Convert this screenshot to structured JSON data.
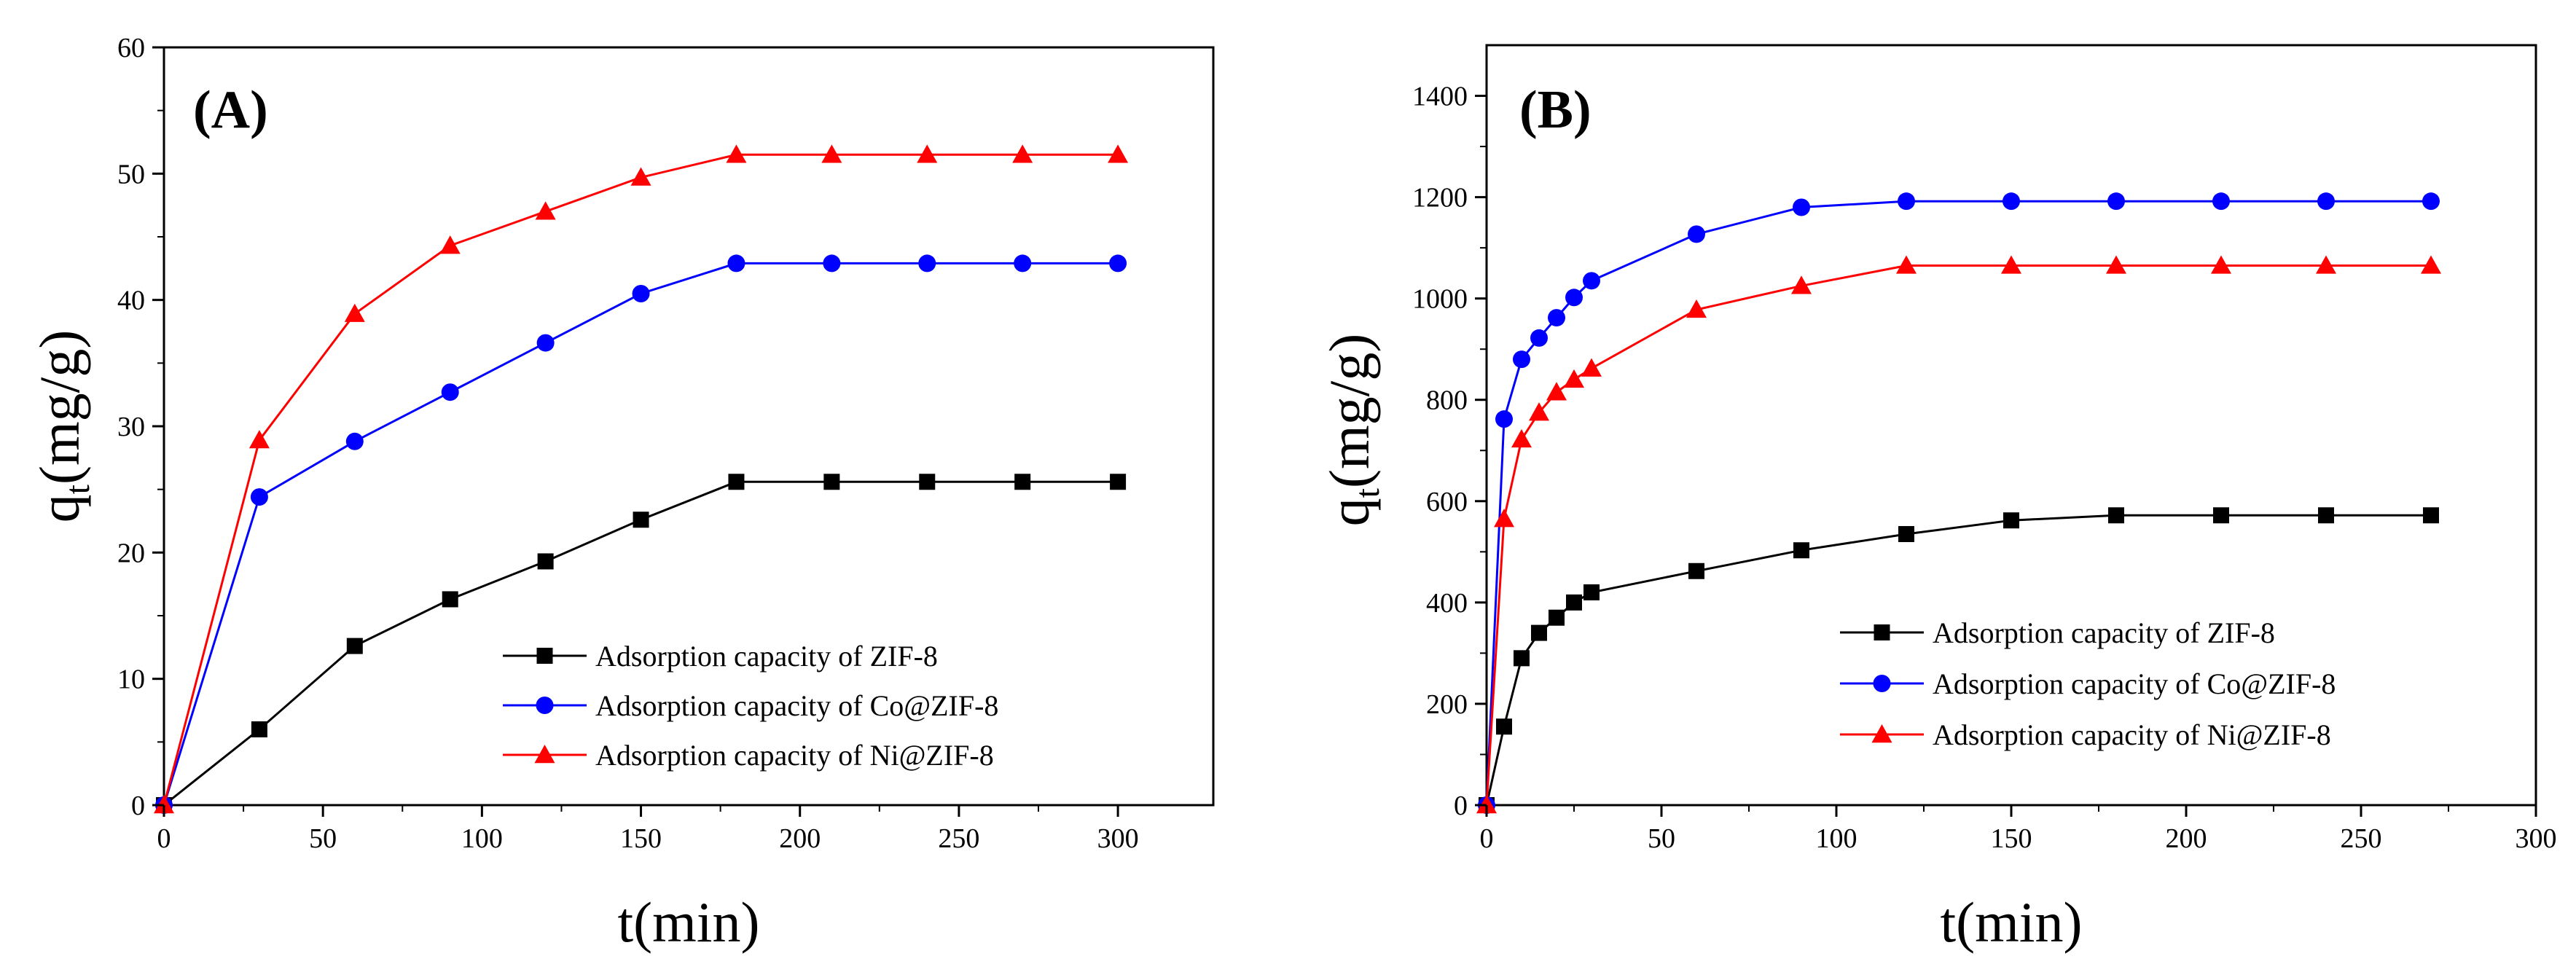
{
  "chart_data": [
    {
      "type": "line",
      "panel_label": "(A)",
      "xlabel": "t(min)",
      "ylabel_main": "q",
      "ylabel_sub": "t",
      "ylabel_tail": "(mg/g)",
      "xlim": [
        0,
        330
      ],
      "ylim": [
        0,
        60
      ],
      "xticks": [
        0,
        50,
        100,
        150,
        200,
        250,
        300
      ],
      "yticks": [
        0,
        10,
        20,
        30,
        40,
        50,
        60
      ],
      "legend_position": "lower-right",
      "grid": false,
      "series": [
        {
          "name": "Adsorption capacity of  ZIF-8",
          "color": "#000000",
          "marker": "square",
          "x": [
            0,
            30,
            60,
            90,
            120,
            150,
            180,
            210,
            240,
            270,
            300
          ],
          "y": [
            0,
            6,
            12.6,
            16.3,
            19.3,
            22.6,
            25.6,
            25.6,
            25.6,
            25.6,
            25.6
          ]
        },
        {
          "name": "Adsorption capacity of  Co@ZIF-8",
          "color": "#0000ff",
          "marker": "circle",
          "x": [
            0,
            30,
            60,
            90,
            120,
            150,
            180,
            210,
            240,
            270,
            300
          ],
          "y": [
            0,
            24.4,
            28.8,
            32.7,
            36.6,
            40.5,
            42.9,
            42.9,
            42.9,
            42.9,
            42.9
          ]
        },
        {
          "name": "Adsorption capacity of  Ni@ZIF-8",
          "color": "#ff0000",
          "marker": "triangle",
          "x": [
            0,
            30,
            60,
            90,
            120,
            150,
            180,
            210,
            240,
            270,
            300
          ],
          "y": [
            0,
            28.9,
            38.9,
            44.3,
            47,
            49.7,
            51.5,
            51.5,
            51.5,
            51.5,
            51.5
          ]
        }
      ]
    },
    {
      "type": "line",
      "panel_label": "(B)",
      "xlabel": "t(min)",
      "ylabel_main": "q",
      "ylabel_sub": "t",
      "ylabel_tail": "(mg/g)",
      "xlim": [
        0,
        300
      ],
      "ylim": [
        0,
        1500
      ],
      "xticks": [
        0,
        50,
        100,
        150,
        200,
        250,
        300
      ],
      "yticks": [
        0,
        200,
        400,
        600,
        800,
        1000,
        1200,
        1400
      ],
      "legend_position": "lower-right",
      "grid": false,
      "series": [
        {
          "name": "Adsorption capacity of ZIF-8",
          "color": "#000000",
          "marker": "square",
          "x": [
            0,
            5,
            10,
            15,
            20,
            25,
            30,
            60,
            90,
            120,
            150,
            180,
            210,
            240,
            270
          ],
          "y": [
            0,
            155,
            290,
            340,
            370,
            400,
            420,
            462,
            503,
            535,
            562,
            572,
            572,
            572,
            572
          ]
        },
        {
          "name": "Adsorption capacity of Co@ZIF-8",
          "color": "#0000ff",
          "marker": "circle",
          "x": [
            0,
            5,
            10,
            15,
            20,
            25,
            30,
            60,
            90,
            120,
            150,
            180,
            210,
            240,
            270
          ],
          "y": [
            0,
            762,
            880,
            922,
            962,
            1002,
            1035,
            1127,
            1180,
            1192,
            1192,
            1192,
            1192,
            1192,
            1192
          ]
        },
        {
          "name": "Adsorption capacity of Ni@ZIF-8",
          "color": "#ff0000",
          "marker": "triangle",
          "x": [
            0,
            5,
            10,
            15,
            20,
            25,
            30,
            60,
            90,
            120,
            150,
            180,
            210,
            240,
            270
          ],
          "y": [
            0,
            565,
            722,
            775,
            815,
            840,
            862,
            978,
            1025,
            1065,
            1065,
            1065,
            1065,
            1065,
            1065
          ]
        }
      ]
    }
  ]
}
